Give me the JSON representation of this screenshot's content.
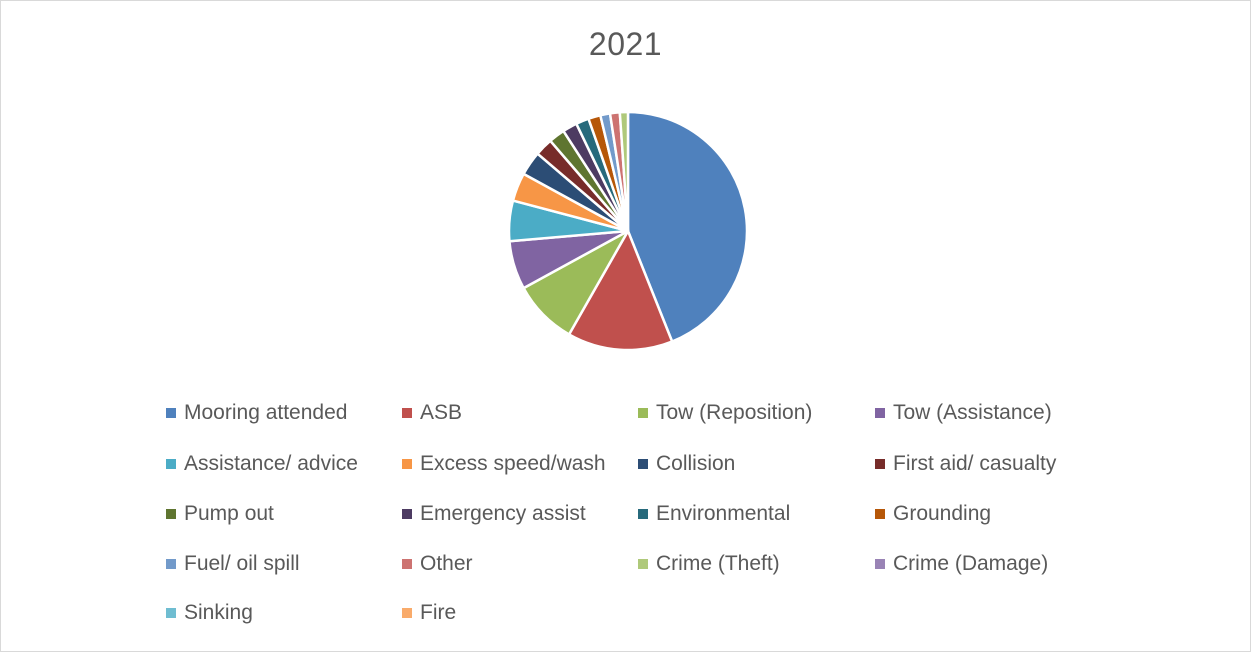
{
  "chart_data": {
    "type": "pie",
    "title": "2021",
    "legend_position": "bottom",
    "slices": [
      {
        "label": "Mooring attended",
        "value": 40.0,
        "color": "#4f81bd"
      },
      {
        "label": "ASB",
        "value": 13.0,
        "color": "#c0504d"
      },
      {
        "label": "Tow (Reposition)",
        "value": 8.0,
        "color": "#9bbb59"
      },
      {
        "label": "Tow (Assistance)",
        "value": 6.0,
        "color": "#8064a2"
      },
      {
        "label": "Assistance/ advice",
        "value": 5.0,
        "color": "#4bacc6"
      },
      {
        "label": "Excess speed/wash",
        "value": 3.5,
        "color": "#f79646"
      },
      {
        "label": "Collision",
        "value": 3.0,
        "color": "#2c4d75"
      },
      {
        "label": "First aid/ casualty",
        "value": 2.2,
        "color": "#772c2a"
      },
      {
        "label": "Pump out",
        "value": 2.0,
        "color": "#5f7530"
      },
      {
        "label": "Emergency assist",
        "value": 1.8,
        "color": "#4d3b62"
      },
      {
        "label": "Environmental",
        "value": 1.6,
        "color": "#276a7c"
      },
      {
        "label": "Grounding",
        "value": 1.5,
        "color": "#b65708"
      },
      {
        "label": "Fuel/ oil spill",
        "value": 1.2,
        "color": "#729aca"
      },
      {
        "label": "Other",
        "value": 1.2,
        "color": "#cd7371"
      },
      {
        "label": "Crime (Theft)",
        "value": 1.0,
        "color": "#afc97a"
      },
      {
        "label": "Crime (Damage)",
        "value": 0.0,
        "color": "#9983b5"
      },
      {
        "label": "Sinking",
        "value": 0.0,
        "color": "#6fbdd1"
      },
      {
        "label": "Fire",
        "value": 0.0,
        "color": "#f9ab6b"
      }
    ]
  }
}
